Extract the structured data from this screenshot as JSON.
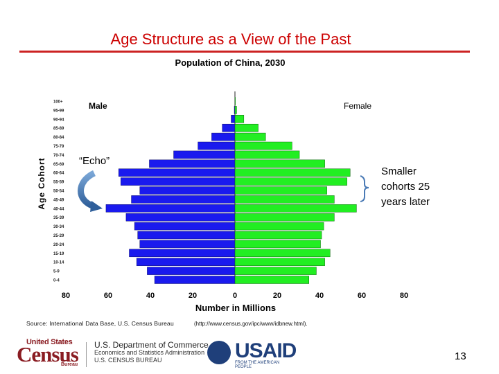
{
  "slide": {
    "title": "Age Structure as a View of the Past",
    "page_number": "13"
  },
  "chart_data": {
    "type": "bar",
    "orientation": "horizontal-population-pyramid",
    "title": "Population of China, 2030",
    "xlabel": "Number in Millions",
    "ylabel": "Age Cohort",
    "xlim": [
      -80,
      80
    ],
    "xticks": [
      -80,
      -60,
      -40,
      -20,
      0,
      20,
      40,
      60,
      80
    ],
    "xtick_labels": [
      "80",
      "60",
      "40",
      "20",
      "0",
      "20",
      "40",
      "60",
      "80"
    ],
    "categories": [
      "100+",
      "95-99",
      "90-94",
      "85-89",
      "80-84",
      "75-79",
      "70-74",
      "65-69",
      "60-64",
      "55-59",
      "50-54",
      "45-49",
      "40-44",
      "35-39",
      "30-34",
      "25-29",
      "20-24",
      "15-19",
      "10-14",
      "5-9",
      "0-4"
    ],
    "series": [
      {
        "name": "Male",
        "color": "#1a1aee",
        "values": [
          0,
          0.3,
          1.8,
          6,
          11,
          17.5,
          29,
          40.5,
          55,
          54,
          45,
          49,
          61,
          51.5,
          47.5,
          46,
          45,
          50,
          46.5,
          41.5,
          38
        ]
      },
      {
        "name": "Female",
        "color": "#22ee22",
        "values": [
          0.2,
          0.8,
          4.2,
          11,
          14.5,
          27,
          30.5,
          42.5,
          54.5,
          53,
          43.5,
          47,
          57.5,
          47,
          42,
          41,
          40.5,
          45,
          42.5,
          38.5,
          35
        ]
      }
    ],
    "annotations": [
      {
        "text": "“Echo”"
      },
      {
        "text": "Smaller cohorts 25 years later"
      }
    ]
  },
  "source": {
    "text": "Source:  International Data Base, U.S. Census Bureau",
    "url": "(http://www.census.gov/ipc/www/idbnew.html)."
  },
  "footer": {
    "census_top": "United States",
    "census_word": "Census",
    "census_bureau": "Bureau",
    "doc_line1": "U.S. Department of Commerce",
    "doc_line2": "Economics and Statistics Administration",
    "doc_line3": "U.S. CENSUS BUREAU",
    "usaid_word": "USAID",
    "usaid_sub": "FROM THE AMERICAN PEOPLE"
  },
  "colors": {
    "title": "#cc0000",
    "male": "#1a1aee",
    "female": "#22ee22",
    "arrow": "#4a7ab5"
  }
}
